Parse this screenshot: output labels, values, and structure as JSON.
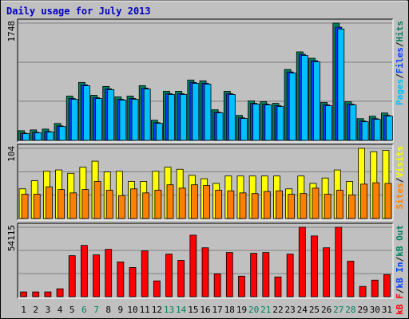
{
  "chart_data": [
    {
      "type": "bar",
      "title": "Daily usage for July 2013",
      "ylim": [
        0,
        1748
      ],
      "yticks": [
        1748
      ],
      "legend_separator": "/",
      "series": [
        {
          "name": "Hits",
          "color": "#00805c",
          "values": [
            144,
            156,
            168,
            252,
            660,
            864,
            672,
            804,
            648,
            660,
            816,
            300,
            732,
            732,
            900,
            888,
            456,
            732,
            372,
            588,
            576,
            552,
            1056,
            1320,
            1224,
            564,
            1748,
            576,
            324,
            360,
            408
          ]
        },
        {
          "name": "Files",
          "color": "#0040ff",
          "values": [
            108,
            120,
            132,
            216,
            624,
            828,
            636,
            768,
            612,
            624,
            780,
            264,
            696,
            696,
            864,
            852,
            420,
            696,
            336,
            552,
            540,
            516,
            1020,
            1284,
            1188,
            528,
            1688,
            540,
            288,
            324,
            372
          ]
        },
        {
          "name": "Pages",
          "color": "#00c0ff",
          "values": [
            100,
            112,
            124,
            206,
            612,
            814,
            624,
            756,
            600,
            612,
            766,
            254,
            684,
            684,
            850,
            838,
            410,
            684,
            326,
            540,
            528,
            504,
            1004,
            1266,
            1170,
            516,
            1660,
            528,
            278,
            314,
            362
          ]
        }
      ]
    },
    {
      "type": "bar",
      "ylim": [
        0,
        104
      ],
      "yticks": [
        104
      ],
      "legend_separator": "/",
      "series": [
        {
          "name": "Visits",
          "color": "#ffff00",
          "values": [
            44,
            56,
            70,
            72,
            67,
            76,
            85,
            69,
            70,
            55,
            55,
            70,
            76,
            73,
            64,
            59,
            52,
            63,
            63,
            63,
            63,
            63,
            44,
            63,
            52,
            60,
            72,
            55,
            104,
            99,
            101
          ]
        },
        {
          "name": "Sites",
          "color": "#ff8000",
          "values": [
            36,
            36,
            47,
            43,
            38,
            43,
            55,
            42,
            34,
            44,
            38,
            42,
            50,
            45,
            50,
            49,
            42,
            41,
            38,
            37,
            40,
            41,
            36,
            37,
            45,
            36,
            42,
            35,
            51,
            53,
            52
          ]
        }
      ]
    },
    {
      "type": "bar",
      "ylim": [
        0,
        54115
      ],
      "yticks": [
        54115
      ],
      "legend_separator": "/",
      "series": [
        {
          "name": "kB Out",
          "color": "#00805c"
        },
        {
          "name": "kB In",
          "color": "#0040ff"
        },
        {
          "name": "kB F",
          "color": "#ff0000",
          "values": [
            3690,
            3690,
            3690,
            6150,
            31980,
            39975,
            32595,
            36900,
            27060,
            22755,
            35670,
            12300,
            33210,
            28290,
            47970,
            38130,
            17835,
            34440,
            15990,
            33825,
            34440,
            15375,
            33210,
            54115,
            47355,
            38130,
            54115,
            27675,
            7995,
            12915,
            17220
          ]
        }
      ],
      "categories": [
        "1",
        "2",
        "3",
        "4",
        "5",
        "6",
        "7",
        "8",
        "9",
        "10",
        "11",
        "12",
        "13",
        "14",
        "15",
        "16",
        "17",
        "18",
        "19",
        "20",
        "21",
        "22",
        "23",
        "24",
        "25",
        "26",
        "27",
        "28",
        "29",
        "30",
        "31"
      ],
      "category_colors": [
        "#000000",
        "#000000",
        "#000000",
        "#000000",
        "#000000",
        "#00805c",
        "#00805c",
        "#000000",
        "#000000",
        "#000000",
        "#000000",
        "#000000",
        "#00805c",
        "#00805c",
        "#000000",
        "#000000",
        "#000000",
        "#000000",
        "#000000",
        "#00805c",
        "#00805c",
        "#000000",
        "#000000",
        "#000000",
        "#000000",
        "#000000",
        "#00805c",
        "#00805c",
        "#000000",
        "#000000",
        "#000000"
      ]
    }
  ]
}
